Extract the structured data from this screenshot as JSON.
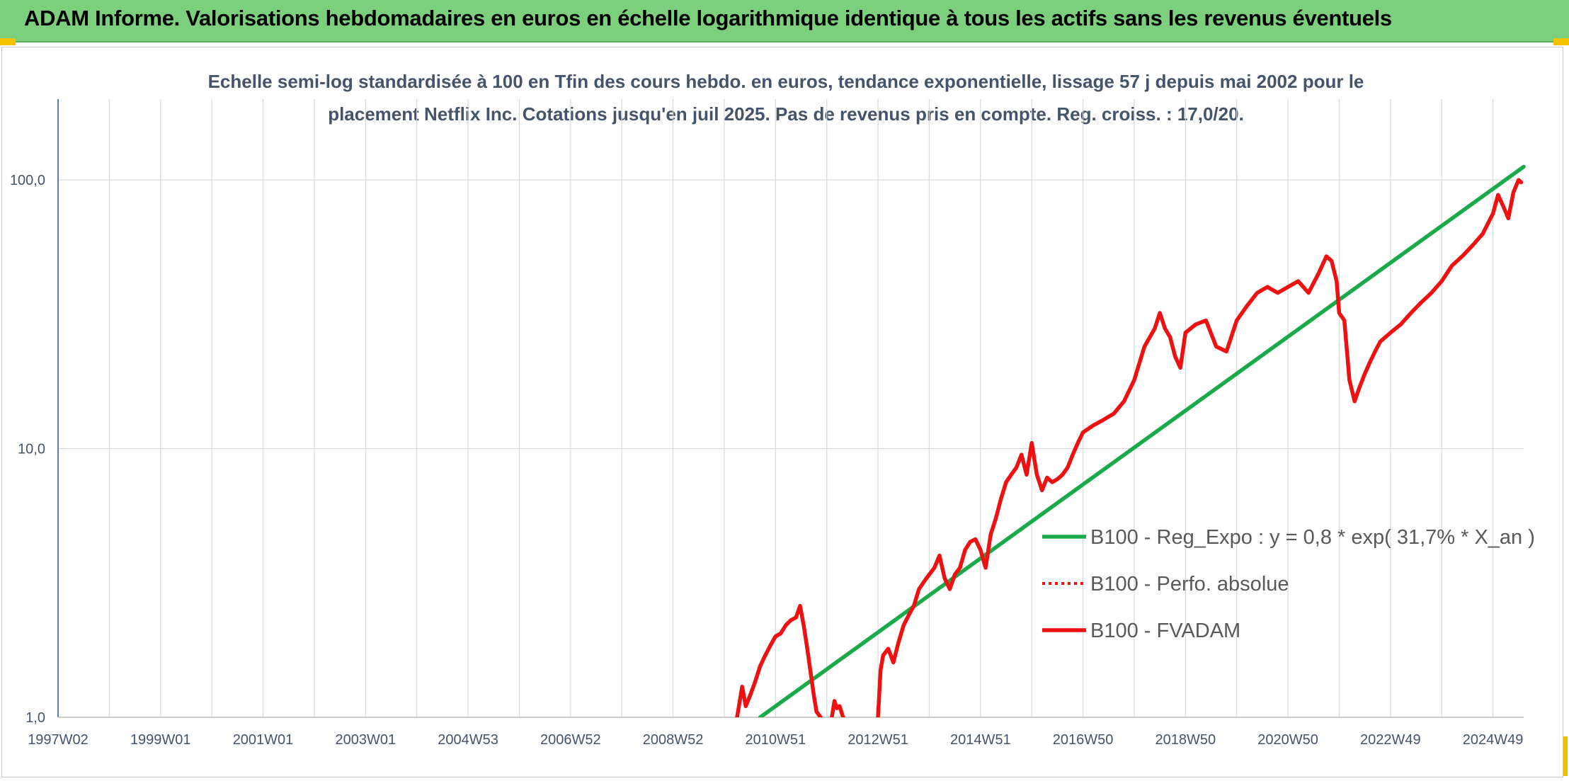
{
  "banner": {
    "title": "ADAM Informe. Valorisations hebdomadaires en euros en échelle logarithmique identique à tous les actifs sans les revenus éventuels"
  },
  "colors": {
    "banner_bg": "#7ccf7c",
    "accent": "#f2c200",
    "trend": "#1aaa4a",
    "price": "#ee1111",
    "grid": "#d9d9d9",
    "text": "#44546a"
  },
  "chart_data": {
    "type": "line",
    "title_line1": "Echelle semi-log standardisée à 100 en Tfin des cours hebdo. en euros, tendance exponentielle, lissage 57 j depuis mai 2002 pour le",
    "title_line2": "placement Netflix Inc. Cotations jusqu'en juil 2025. Pas de revenus pris en compte. Reg. croiss. : 17,0/20.",
    "y_scale": "log",
    "ylim": [
      1,
      200
    ],
    "y_ticks": [
      {
        "value": 1,
        "label": "1,0"
      },
      {
        "value": 10,
        "label": "10,0"
      },
      {
        "value": 100,
        "label": "100,0"
      }
    ],
    "xlim": [
      1997.0,
      2025.6
    ],
    "x_ticks": [
      {
        "value": 1997.0,
        "label": "1997W02"
      },
      {
        "value": 1999.0,
        "label": "1999W01"
      },
      {
        "value": 2001.0,
        "label": "2001W01"
      },
      {
        "value": 2003.0,
        "label": "2003W01"
      },
      {
        "value": 2005.0,
        "label": "2004W53"
      },
      {
        "value": 2007.0,
        "label": "2006W52"
      },
      {
        "value": 2009.0,
        "label": "2008W52"
      },
      {
        "value": 2011.0,
        "label": "2010W51"
      },
      {
        "value": 2013.0,
        "label": "2012W51"
      },
      {
        "value": 2015.0,
        "label": "2014W51"
      },
      {
        "value": 2017.0,
        "label": "2016W50"
      },
      {
        "value": 2019.0,
        "label": "2018W50"
      },
      {
        "value": 2021.0,
        "label": "2020W50"
      },
      {
        "value": 2023.0,
        "label": "2022W49"
      },
      {
        "value": 2025.0,
        "label": "2024W49"
      }
    ],
    "grid": true,
    "legend_position": "lower-right",
    "series": [
      {
        "name": "B100 - Reg_Expo : y = 0,8 * exp( 31,7% *  X_an )",
        "style": "solid",
        "color": "#1aaa4a",
        "x": [
          2010.7,
          2025.6
        ],
        "y": [
          1.0,
          112
        ]
      },
      {
        "name": "B100 - Perfo. absolue",
        "style": "dotted",
        "color": "#ee1111",
        "x": [],
        "y": []
      },
      {
        "name": "B100 - FVADAM",
        "style": "solid",
        "color": "#ee1111",
        "segments": [
          {
            "x": [
              2010.25,
              2010.35,
              2010.42,
              2010.5,
              2010.6,
              2010.7,
              2010.8,
              2010.9,
              2011.0,
              2011.1,
              2011.2,
              2011.3,
              2011.4,
              2011.48,
              2011.55,
              2011.62,
              2011.7,
              2011.75,
              2011.8,
              2011.88
            ],
            "y": [
              1.0,
              1.3,
              1.1,
              1.2,
              1.35,
              1.55,
              1.7,
              1.85,
              2.0,
              2.05,
              2.2,
              2.3,
              2.35,
              2.6,
              2.2,
              1.8,
              1.4,
              1.2,
              1.05,
              1.0
            ]
          },
          {
            "x": [
              2012.1,
              2012.15,
              2012.2,
              2012.25,
              2012.32
            ],
            "y": [
              1.0,
              1.15,
              1.08,
              1.1,
              1.0
            ]
          },
          {
            "x": [
              2013.0,
              2013.05,
              2013.1,
              2013.2,
              2013.3,
              2013.4,
              2013.5,
              2013.6,
              2013.7,
              2013.8,
              2013.9,
              2014.0,
              2014.1,
              2014.2,
              2014.3,
              2014.4,
              2014.5,
              2014.6,
              2014.7,
              2014.8,
              2014.9,
              2015.0,
              2015.1,
              2015.2,
              2015.3,
              2015.4,
              2015.5,
              2015.6,
              2015.7,
              2015.8,
              2015.9,
              2016.0,
              2016.1,
              2016.2,
              2016.3,
              2016.4,
              2016.5,
              2016.6,
              2016.7,
              2016.8,
              2016.9,
              2017.0,
              2017.2,
              2017.4,
              2017.6,
              2017.8,
              2018.0,
              2018.2,
              2018.4,
              2018.5,
              2018.6,
              2018.7,
              2018.8,
              2018.9,
              2019.0,
              2019.2,
              2019.4,
              2019.6,
              2019.8,
              2020.0,
              2020.2,
              2020.4,
              2020.6,
              2020.8,
              2021.0,
              2021.2,
              2021.4,
              2021.6,
              2021.75,
              2021.85,
              2021.95,
              2022.0,
              2022.1,
              2022.2,
              2022.3,
              2022.4,
              2022.5,
              2022.6,
              2022.7,
              2022.8,
              2022.9,
              2023.0,
              2023.2,
              2023.4,
              2023.6,
              2023.8,
              2024.0,
              2024.2,
              2024.4,
              2024.6,
              2024.8,
              2025.0,
              2025.1,
              2025.2,
              2025.3,
              2025.4,
              2025.5,
              2025.55
            ],
            "y": [
              1.0,
              1.5,
              1.7,
              1.8,
              1.6,
              1.9,
              2.2,
              2.4,
              2.6,
              3.0,
              3.2,
              3.4,
              3.6,
              4.0,
              3.3,
              3.0,
              3.4,
              3.6,
              4.2,
              4.5,
              4.6,
              4.2,
              3.6,
              4.8,
              5.5,
              6.5,
              7.5,
              8.0,
              8.5,
              9.5,
              8.0,
              10.5,
              8.0,
              7.0,
              7.8,
              7.5,
              7.7,
              8.0,
              8.5,
              9.5,
              10.5,
              11.5,
              12.2,
              12.8,
              13.5,
              15.0,
              18.0,
              24.0,
              28.0,
              32.0,
              28.0,
              26.0,
              22.0,
              20.0,
              27.0,
              29.0,
              30.0,
              24.0,
              23.0,
              30.0,
              34.0,
              38.0,
              40.0,
              38.0,
              40.0,
              42.0,
              38.0,
              45.0,
              52.0,
              50.0,
              42.0,
              32.0,
              30.0,
              18.0,
              15.0,
              17.0,
              19.0,
              21.0,
              23.0,
              25.0,
              26.0,
              27.0,
              29.0,
              32.0,
              35.0,
              38.0,
              42.0,
              48.0,
              52.0,
              57.0,
              63.0,
              75.0,
              88.0,
              80.0,
              72.0,
              90.0,
              100.0,
              98.0
            ]
          }
        ]
      }
    ]
  }
}
